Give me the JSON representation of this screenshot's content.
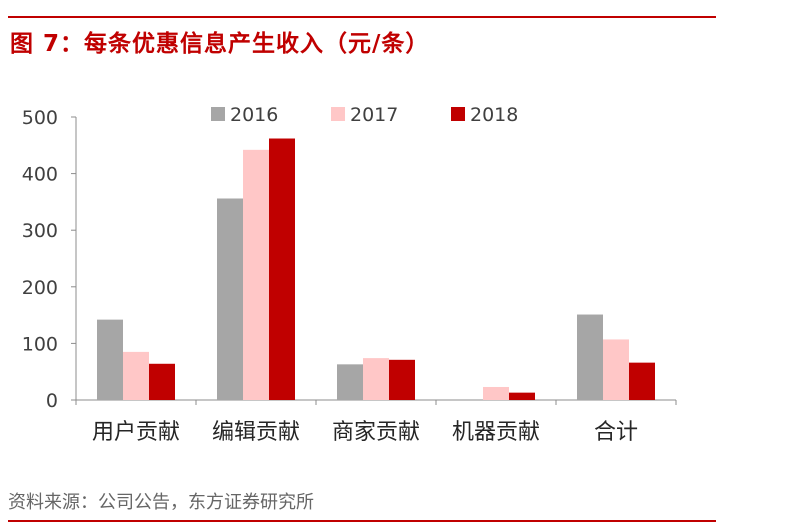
{
  "header": {
    "title": "图 7：每条优惠信息产生收入（元/条）"
  },
  "footer": {
    "source": "资料来源：公司公告，东方证券研究所"
  },
  "colors": {
    "accent": "#c00000",
    "series_2016": "#a6a6a6",
    "series_2017": "#ffc7c7",
    "series_2018": "#c00000"
  },
  "chart_data": {
    "type": "bar",
    "categories": [
      "用户贡献",
      "编辑贡献",
      "商家贡献",
      "机器贡献",
      "合计"
    ],
    "series": [
      {
        "name": "2016",
        "values": [
          142,
          356,
          63,
          0,
          151
        ]
      },
      {
        "name": "2017",
        "values": [
          85,
          442,
          74,
          23,
          107
        ]
      },
      {
        "name": "2018",
        "values": [
          64,
          462,
          71,
          13,
          66
        ]
      }
    ],
    "ylim": [
      0,
      500
    ],
    "yticks": [
      0,
      100,
      200,
      300,
      400,
      500
    ],
    "xlabel": "",
    "ylabel": "",
    "legend": "top-center",
    "grid": false
  }
}
